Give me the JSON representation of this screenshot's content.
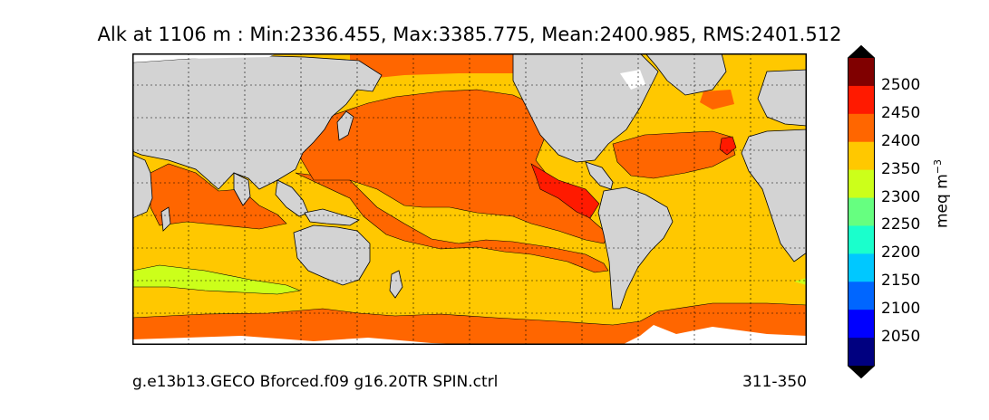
{
  "title": "Alk at 1106 m : Min:2336.455, Max:3385.775, Mean:2400.985, RMS:2401.512",
  "footer": {
    "run_name": "g.e13b13.GECO Bforced.f09 g16.20TR SPIN.ctrl",
    "period": "311-350"
  },
  "colorbar": {
    "unit": "meq m",
    "unit_superscript": "−3",
    "tick_labels": [
      "2500",
      "2450",
      "2400",
      "2350",
      "2300",
      "2250",
      "2200",
      "2150",
      "2100",
      "2050"
    ],
    "colors_top_to_bottom": [
      "#800000",
      "#ff1a00",
      "#ff6600",
      "#ffc800",
      "#ccff1a",
      "#66ff80",
      "#1affcc",
      "#00c8ff",
      "#0066ff",
      "#0000ff",
      "#000080"
    ],
    "extend": "both"
  },
  "map_colors": {
    "land": "#d3d3d3",
    "no_data": "#ffffff",
    "band_2300_2350": "#ccff1a",
    "band_2350_2400": "#ffc800",
    "band_2400_2450": "#ff6600",
    "band_2450_2500": "#ff1a00"
  }
}
